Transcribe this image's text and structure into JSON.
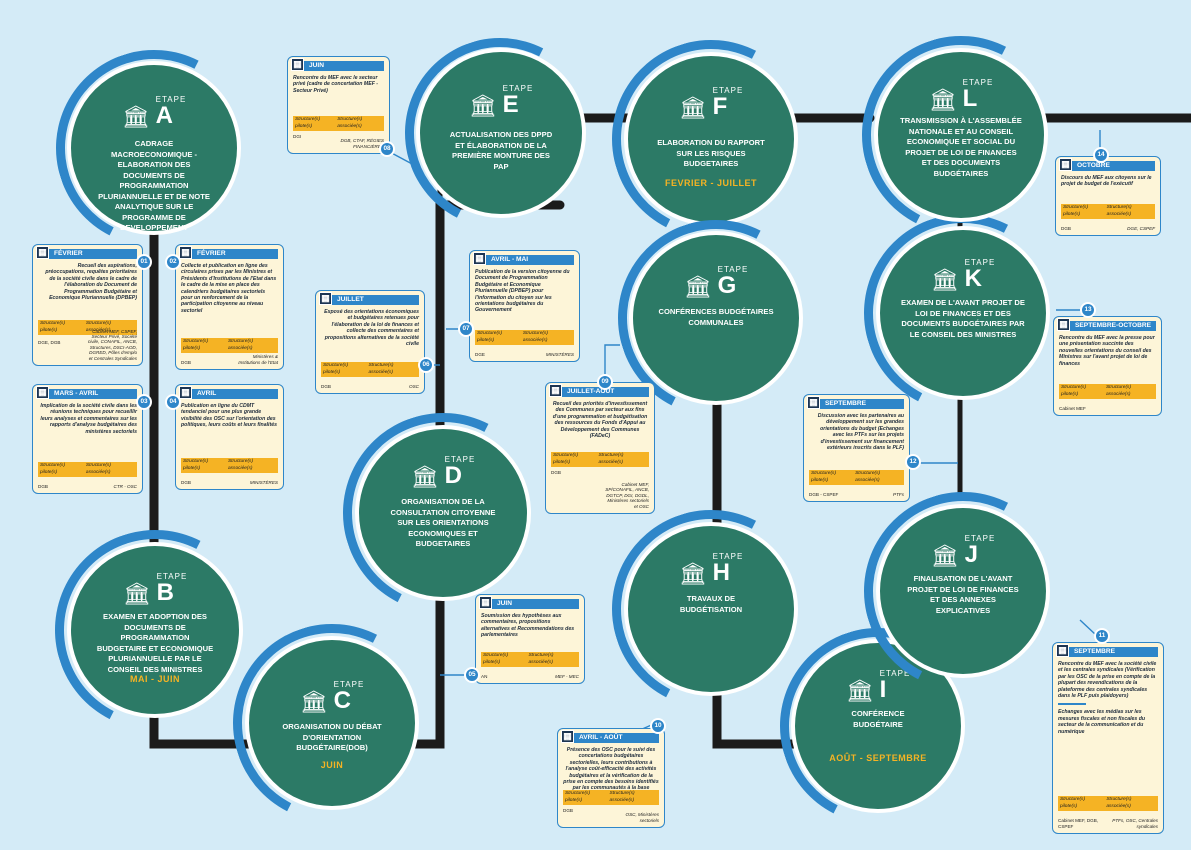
{
  "labels": {
    "etape": "ETAPE",
    "pilot": "Structure(s) pilote(s)",
    "assoc": "Structure(s) associée(s)"
  },
  "stages": {
    "A": {
      "letter": "A",
      "title": "CADRAGE MACROECONOMIQUE - ELABORATION DES DOCUMENTS DE PROGRAMMATION PLURIANNUELLE ET DE NOTE ANALYTIQUE SUR LE PROGRAMME DE DEVELOPPEMENT",
      "period": ""
    },
    "B": {
      "letter": "B",
      "title": "EXAMEN ET ADOPTION DES DOCUMENTS DE PROGRAMMATION BUDGETAIRE ET ECONOMIQUE PLURIANNUELLE PAR LE CONSEIL DES MINISTRES",
      "period": "MAI - JUIN"
    },
    "C": {
      "letter": "C",
      "title": "ORGANISATION DU DÉBAT D'ORIENTATION BUDGÉTAIRE(DOB)",
      "period": "JUIN"
    },
    "D": {
      "letter": "D",
      "title": "ORGANISATION DE LA CONSULTATION CITOYENNE SUR LES ORIENTATIONS ECONOMIQUES ET BUDGETAIRES",
      "period": ""
    },
    "E": {
      "letter": "E",
      "title": "ACTUALISATION DES DPPD ET ÉLABORATION DE LA PREMIÈRE MONTURE DES PAP",
      "period": ""
    },
    "F": {
      "letter": "F",
      "title": "ELABORATION DU RAPPORT SUR LES RISQUES BUDGETAIRES",
      "period": "FEVRIER - JUILLET"
    },
    "G": {
      "letter": "G",
      "title": "CONFÉRENCES BUDGÉTAIRES COMMUNALES",
      "period": ""
    },
    "H": {
      "letter": "H",
      "title": "TRAVAUX DE BUDGÉTISATION",
      "period": ""
    },
    "I": {
      "letter": "I",
      "title": "CONFÉRENCE BUDGÉTAIRE",
      "period": "AOÛT - SEPTEMBRE"
    },
    "J": {
      "letter": "J",
      "title": "FINALISATION DE L'AVANT PROJET DE LOI DE FINANCES ET DES ANNEXES EXPLICATIVES",
      "period": ""
    },
    "K": {
      "letter": "K",
      "title": "EXAMEN DE L'AVANT PROJET DE LOI DE FINANCES ET DES DOCUMENTS BUDGÉTAIRES PAR LE CONSEIL DES MINISTRES",
      "period": ""
    },
    "L": {
      "letter": "L",
      "title": "TRANSMISSION À L'ASSEMBLÉE NATIONALE ET AU CONSEIL ECONOMIQUE ET SOCIAL DU PROJET DE LOI DE FINANCES ET DES DOCUMENTS BUDGÉTAIRES",
      "period": ""
    }
  },
  "cards": {
    "c01": {
      "num": "01",
      "month": "FÉVRIER",
      "desc": "Recueil des aspirations, préoccupations, requêtes prioritaires de la société civile dans le cadre de l'élaboration du Document de Programmation Budgétaire et Economique Pluriannuelle (DPBEP)",
      "pilot": "DGE, DGB",
      "assoc": "Cabinet MEF, CSPEF, Secteur Privé, Société civile, CONAFIL, ANCB, Structures, DSCI-AOD, DGRED, Pôles d'emplo et Centrales Syndicales"
    },
    "c02": {
      "num": "02",
      "month": "FÉVRIER",
      "desc": "Collecte et publication en ligne des circulaires prises par les Ministres et Présidents d'Institutions de l'Etat dans le cadre de la mise en place des calendriers budgétaires sectoriels pour un renforcement de la participation citoyenne au niveau sectoriel",
      "pilot": "DGB",
      "assoc": "Ministères & Institutions de l'Etat"
    },
    "c03": {
      "num": "03",
      "month": "MARS - AVRIL",
      "desc": "Implication de la société civile dans les réunions techniques pour recueillir leurs analyses et commentaires sur les rapports d'analyse budgétaires des ministères sectoriels",
      "pilot": "DGB",
      "assoc": "CTR - OSC"
    },
    "c04": {
      "num": "04",
      "month": "AVRIL",
      "desc": "Publication en ligne du CDMT tendanciel pour une plus grande visibilité des OSC sur l'orientation des politiques, leurs coûts et leurs finalités",
      "pilot": "DGB",
      "assoc": "MINISTÈRES"
    },
    "c05": {
      "num": "05",
      "month": "JUIN",
      "desc": "Soumission des hypothèses aux commentaires, propositions alternatives et Recommendations des parlementaires",
      "pilot": "AN",
      "assoc": "MEF - MEC"
    },
    "c06": {
      "num": "06",
      "month": "JUILLET",
      "desc": "Exposé des orientations économiques et budgétaires retenues pour l'élaboration de la loi de finances et collecte des commentaires et propositions alternatives de la société civile",
      "pilot": "DGB",
      "assoc": "OSC"
    },
    "c07": {
      "num": "07",
      "month": "AVRIL - MAI",
      "desc": "Publication de la version citoyenne du Document de Programmation Budgétaire et Economique Pluriannuelle (DPBEP) pour l'information du citoyen sur les orientations budgétaires du Gouvernement",
      "pilot": "DGE",
      "assoc": "MINISTÈRES"
    },
    "c08": {
      "num": "08",
      "month": "JUIN",
      "desc": "Rencontre du MEF avec le secteur privé (cadre de concertation MEF - Secteur Privé)",
      "pilot": "DGI",
      "assoc": "DGB, CTAF, RÉGIES FINANCIÈRES"
    },
    "c09": {
      "num": "09",
      "month": "JUILLET-AOÛT",
      "desc": "Recueil des priorités d'investissement des Communes par secteur aux fins d'une programmation et budgétisation des ressources du Fonds d'Appui au Développement des Communes (FADeC)",
      "pilot": "DGB",
      "assoc": "Cabinet MEF, SP/CONAFIL, ANCB, DGTCP, DGI, DGDL, Ministères sectoriels et OSC"
    },
    "c10": {
      "num": "10",
      "month": "AVRIL - AOÛT",
      "desc": "Présence des OSC pour le suivi des concertations budgétaires sectorielles, leurs contributions à l'analyse coût-efficacité des activités budgétaires et la vérification de la prise en compte des besoins identifiés par les communautés à la base",
      "pilot": "DGB",
      "assoc": "OSC, Ministères sectoriels"
    },
    "c11": {
      "num": "11",
      "month": "SEPTEMBRE",
      "desc": "Rencontre du MEF avec la société civile et les centrales syndicales (Vérification par les OSC de la prise en compte de la plupart des revendications de la plateforme des centrales syndicales dans le PLF puis plaidoyers)",
      "desc2": "Echanges avec les médias sur les mesures fiscales et non fiscales du secteur de la communication et du numérique",
      "pilot": "Cabinet MEF, DGB, CSPEF",
      "assoc": "PTFs, OSC, Centrales syndicales"
    },
    "c12": {
      "num": "12",
      "month": "SEPTEMBRE",
      "desc": "Discussion avec les partenaires au développement sur les grandes orientations du budget (Echanges avec les PTFs sur les projets d'investissement sur financement extérieurs inscrits dans le PLF)",
      "pilot": "DGB - CSPEF",
      "assoc": "PTFs"
    },
    "c13": {
      "num": "13",
      "month": "SEPTEMBRE-OCTOBRE",
      "desc": "Rencontre du MEF avec la presse pour une présentation succinte des nouvelles orientations du conseil des Ministres sur l'avant projet de loi de finances",
      "pilot": "Cabinet MEF",
      "assoc": ""
    },
    "c14": {
      "num": "14",
      "month": "OCTOBRE",
      "desc": "Discours du MEF aux citoyens sur le projet de budget de l'exécutif",
      "pilot": "DGB",
      "assoc": "DGE, CSPEF"
    }
  }
}
